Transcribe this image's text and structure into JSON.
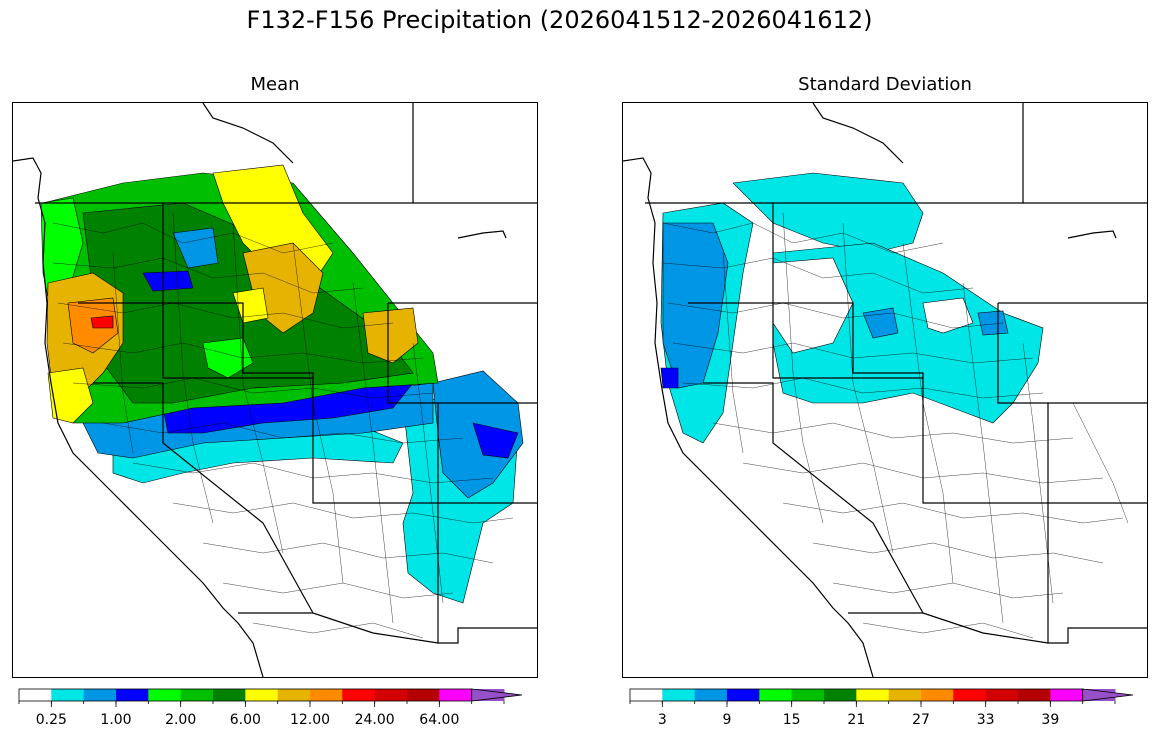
{
  "title": "F132-F156 Precipitation (2026041512-2026041612)",
  "panels": [
    {
      "title": "Mean",
      "colorbar": {
        "colors": [
          "#ffffff",
          "#00e6e6",
          "#0096e6",
          "#0000ff",
          "#00ff00",
          "#00be00",
          "#008200",
          "#ffff00",
          "#e6b400",
          "#ff8c00",
          "#ff0000",
          "#d20000",
          "#b40000",
          "#ff00ff",
          "#9650c8"
        ],
        "tick_labels": [
          "0.25",
          "1.00",
          "2.00",
          "6.00",
          "12.00",
          "24.00",
          "64.00"
        ],
        "extend": "max"
      }
    },
    {
      "title": "Standard Deviation",
      "colorbar": {
        "colors": [
          "#ffffff",
          "#00e6e6",
          "#0096e6",
          "#0000ff",
          "#00ff00",
          "#00be00",
          "#008200",
          "#ffff00",
          "#e6b400",
          "#ff8c00",
          "#ff0000",
          "#d20000",
          "#b40000",
          "#ff00ff",
          "#9650c8"
        ],
        "tick_labels": [
          "3",
          "9",
          "15",
          "21",
          "27",
          "33",
          "39"
        ],
        "extend": "max"
      }
    }
  ]
}
